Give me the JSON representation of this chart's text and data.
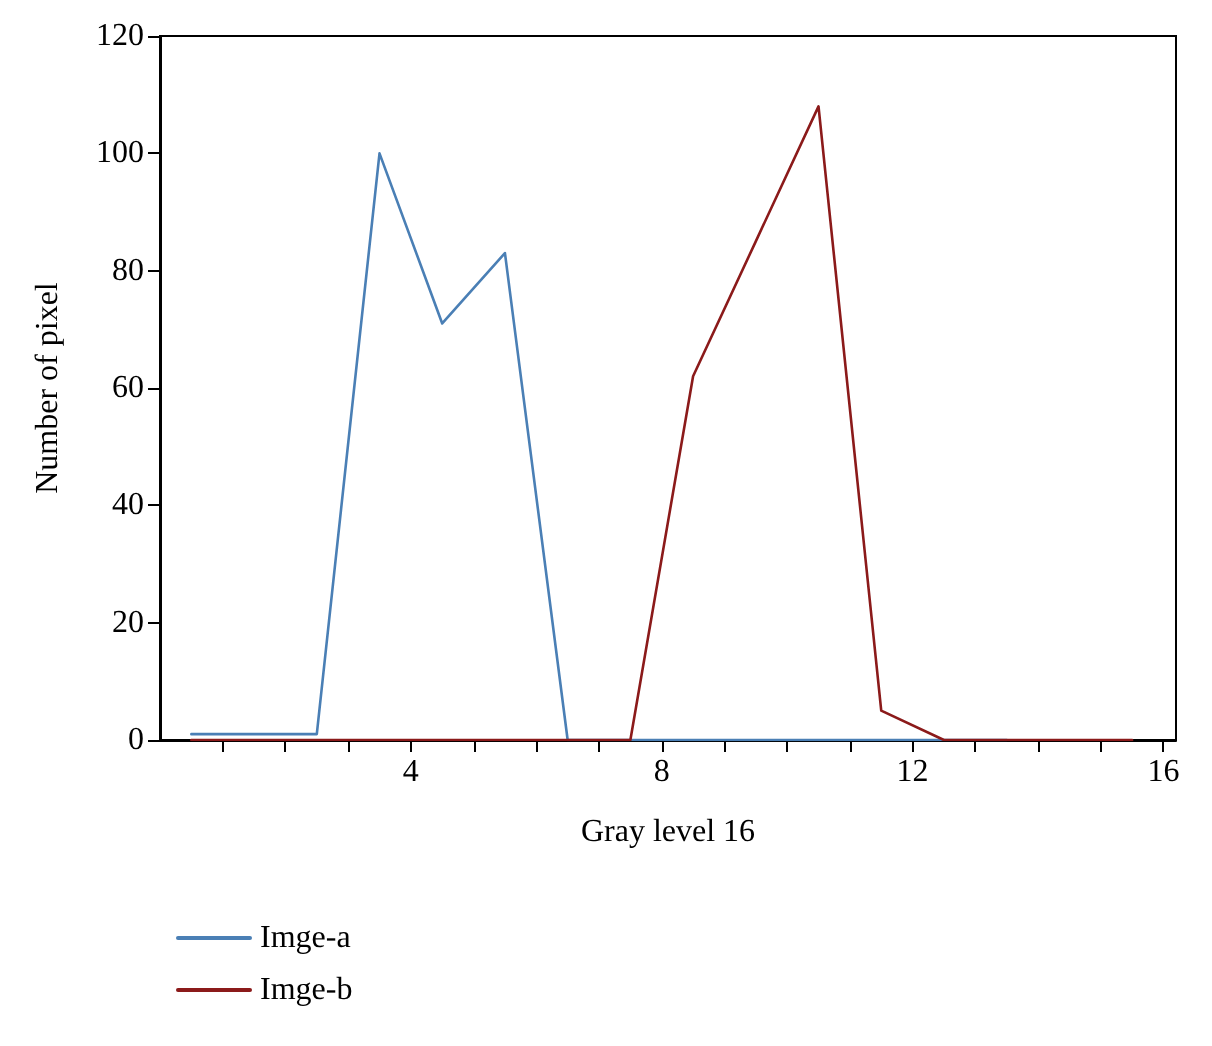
{
  "chart_data": {
    "type": "line",
    "xlabel": "Gray level 16",
    "ylabel": "Number of pixel",
    "x": [
      0.5,
      1.5,
      2.5,
      3.5,
      4.5,
      5.5,
      6.5,
      7.5,
      8.5,
      9.5,
      10.5,
      11.5,
      12.5,
      13.5,
      14.5,
      15.5
    ],
    "series": [
      {
        "name": "Imge-a",
        "color": "#4a7fb5",
        "values": [
          1,
          1,
          1,
          100,
          71,
          83,
          0,
          0,
          0,
          0,
          0,
          0,
          0,
          0,
          null,
          null
        ]
      },
      {
        "name": "Imge-b",
        "color": "#8b1a1a",
        "values": [
          0,
          0,
          0,
          0,
          0,
          0,
          0,
          0,
          62,
          85,
          108,
          5,
          0,
          0,
          0,
          0
        ]
      }
    ],
    "xlim": [
      0,
      16.2
    ],
    "xticks": [
      {
        "value": 1,
        "label": null
      },
      {
        "value": 2,
        "label": null
      },
      {
        "value": 3,
        "label": null
      },
      4,
      {
        "value": 5,
        "label": null
      },
      {
        "value": 6,
        "label": null
      },
      {
        "value": 7,
        "label": null
      },
      8,
      {
        "value": 9,
        "label": null
      },
      {
        "value": 10,
        "label": null
      },
      {
        "value": 11,
        "label": null
      },
      12,
      {
        "value": 13,
        "label": null
      },
      {
        "value": 14,
        "label": null
      },
      {
        "value": 15,
        "label": null
      },
      16
    ],
    "ylim": [
      0,
      120
    ],
    "yticks": [
      0,
      20,
      40,
      60,
      80,
      100,
      120
    ],
    "grid": false,
    "legend": "bottom left",
    "marker": "none",
    "line_style": "solid"
  }
}
